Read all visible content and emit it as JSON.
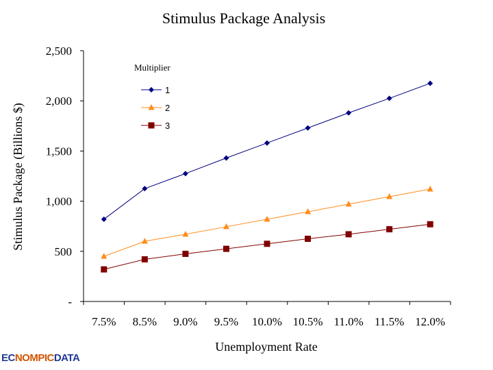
{
  "chart_data": {
    "type": "line",
    "title": "Stimulus Package Analysis",
    "xlabel": "Unemployment Rate",
    "ylabel": "Stimulus Package (Billions $)",
    "categories": [
      "7.5%",
      "8.5%",
      "9.0%",
      "9.5%",
      "10.0%",
      "10.5%",
      "11.0%",
      "11.5%",
      "12.0%"
    ],
    "ylim": [
      0,
      2500
    ],
    "yticks": [
      0,
      500,
      1000,
      1500,
      2000,
      2500
    ],
    "ytick_labels": [
      "-",
      "500",
      "1,000",
      "1,500",
      "2,000",
      "2,500"
    ],
    "grid": false,
    "legend": {
      "title": "Multiplier",
      "position": "top-left"
    },
    "series": [
      {
        "name": "1",
        "color": "#000080",
        "marker": "diamond",
        "values": [
          820,
          1125,
          1275,
          1430,
          1580,
          1730,
          1880,
          2025,
          2175
        ]
      },
      {
        "name": "2",
        "color": "#ff8c1a",
        "marker": "triangle",
        "values": [
          450,
          600,
          670,
          745,
          820,
          895,
          970,
          1045,
          1120
        ]
      },
      {
        "name": "3",
        "color": "#800000",
        "marker": "square",
        "values": [
          320,
          420,
          475,
          525,
          575,
          625,
          670,
          720,
          770
        ]
      }
    ]
  },
  "logo": {
    "part1": "EC",
    "part2": "NOMPIC",
    "part3": "DATA"
  }
}
